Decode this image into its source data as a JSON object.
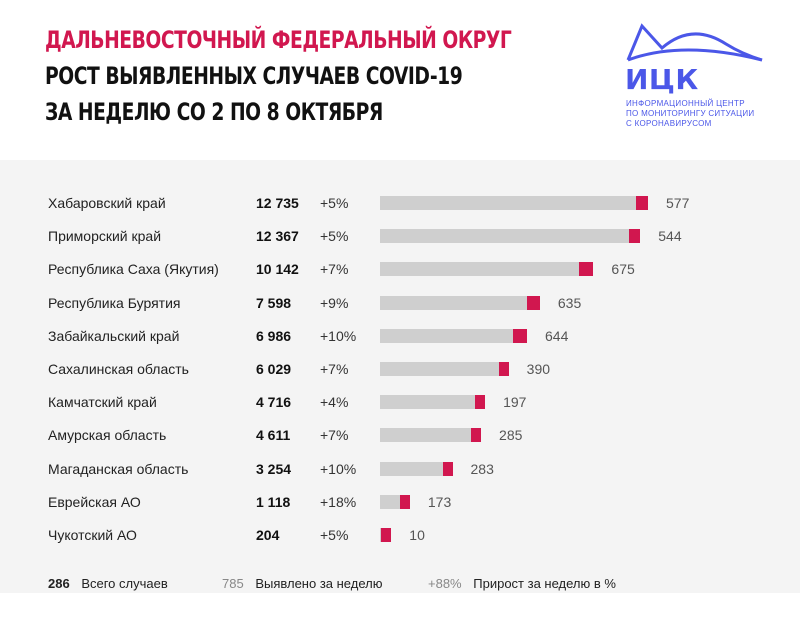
{
  "header": {
    "line1": "ДАЛЬНЕВОСТОЧНЫЙ ФЕДЕРАЛЬНЫЙ ОКРУГ",
    "line2": "РОСТ ВЫЯВЛЕННЫХ СЛУЧАЕВ COVID-19",
    "line3": "ЗА НЕДЕЛЮ СО 2 ПО 8 ОКТЯБРЯ"
  },
  "logo": {
    "name": "ИЦК",
    "caption_lines": [
      "ИНФОРМАЦИОННЫЙ ЦЕНТР",
      "ПО МОНИТОРИНГУ СИТУАЦИИ",
      "С КОРОНАВИРУСОМ"
    ]
  },
  "colors": {
    "title_accent": "#d1174f",
    "title_dark": "#111111",
    "logo_blue": "#4b57e8",
    "bar_gray": "#cfcfcf",
    "bar_red": "#d1174f",
    "panel_bg": "#f4f4f4"
  },
  "chart_data": {
    "type": "bar",
    "orientation": "horizontal",
    "stacked": true,
    "categories": [
      "Хабаровский край",
      "Приморский край",
      "Республика Саха (Якутия)",
      "Республика Бурятия",
      "Забайкальский край",
      "Сахалинская область",
      "Камчатский край",
      "Амурская область",
      "Магаданская область",
      "Еврейская АО",
      "Чукотский АО"
    ],
    "total_labels": [
      "12 735",
      "12 367",
      "10 142",
      "7 598",
      "6 986",
      "6 029",
      "4 716",
      "4 611",
      "3 254",
      "1 118",
      "204"
    ],
    "totals": [
      12735,
      12367,
      10142,
      7598,
      6986,
      6029,
      4716,
      4611,
      3254,
      1118,
      204
    ],
    "growth_labels": [
      "+5%",
      "+5%",
      "+7%",
      "+9%",
      "+10%",
      "+7%",
      "+4%",
      "+7%",
      "+10%",
      "+18%",
      "+5%"
    ],
    "weekly_labels": [
      "577",
      "544",
      "675",
      "635",
      "644",
      "390",
      "197",
      "285",
      "283",
      "173",
      "10"
    ],
    "weekly": [
      577,
      544,
      675,
      635,
      644,
      390,
      197,
      285,
      283,
      173,
      10
    ],
    "series": [
      {
        "name": "Всего случаев",
        "color": "#cfcfcf"
      },
      {
        "name": "Выявлено за неделю",
        "color": "#d1174f"
      }
    ],
    "xlim": [
      0,
      12735
    ]
  },
  "legend": {
    "total_value": "286",
    "total_label": "Всего случаев",
    "weekly_value": "785",
    "weekly_label": "Выявлено за неделю",
    "growth_value": "+88%",
    "growth_label": "Прирост за неделю в %"
  }
}
